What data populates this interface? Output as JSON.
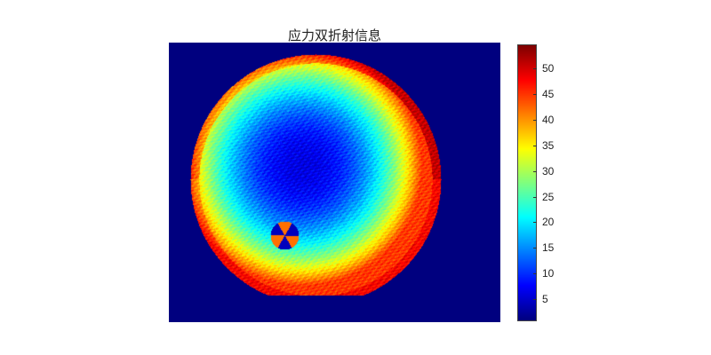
{
  "chart_data": {
    "type": "heatmap",
    "title": "应力双折射信息",
    "colormap": "jet",
    "clim": [
      0.7,
      54.7
    ],
    "colorbar": {
      "placement": "right",
      "ticks": [
        5,
        10,
        15,
        20,
        25,
        30,
        35,
        40,
        45,
        50
      ],
      "tick_labels": [
        "5",
        "10",
        "15",
        "20",
        "25",
        "30",
        "35",
        "40",
        "45",
        "50"
      ]
    },
    "description_values": {
      "background": 0.7,
      "center": 6,
      "rim": 45
    },
    "grid": false
  }
}
